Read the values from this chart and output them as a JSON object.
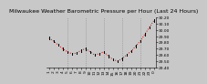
{
  "title": "Milwaukee Weather Barometric Pressure per Hour (Last 24 Hours)",
  "x_labels": [
    "1",
    "2",
    "3",
    "4",
    "5",
    "6",
    "7",
    "8",
    "9",
    "10",
    "11",
    "12",
    "13",
    "14",
    "15",
    "16",
    "17",
    "18",
    "19",
    "20",
    "21",
    "22",
    "23",
    "0"
  ],
  "y_values": [
    29.87,
    29.82,
    29.76,
    29.7,
    29.65,
    29.62,
    29.63,
    29.67,
    29.7,
    29.65,
    29.6,
    29.62,
    29.65,
    29.58,
    29.53,
    29.5,
    29.54,
    29.6,
    29.66,
    29.74,
    29.82,
    29.93,
    30.04,
    30.15
  ],
  "line_color": "#dd0000",
  "marker_color": "#000000",
  "bg_color": "#c8c8c8",
  "plot_bg_color": "#c8c8c8",
  "grid_color": "#888888",
  "ylim": [
    29.4,
    30.2
  ],
  "yticks": [
    29.4,
    29.5,
    29.6,
    29.7,
    29.8,
    29.9,
    30.0,
    30.1,
    30.2
  ],
  "title_fontsize": 4.5,
  "tick_fontsize": 3.2,
  "grid_positions": [
    4,
    8,
    12,
    16,
    20
  ]
}
